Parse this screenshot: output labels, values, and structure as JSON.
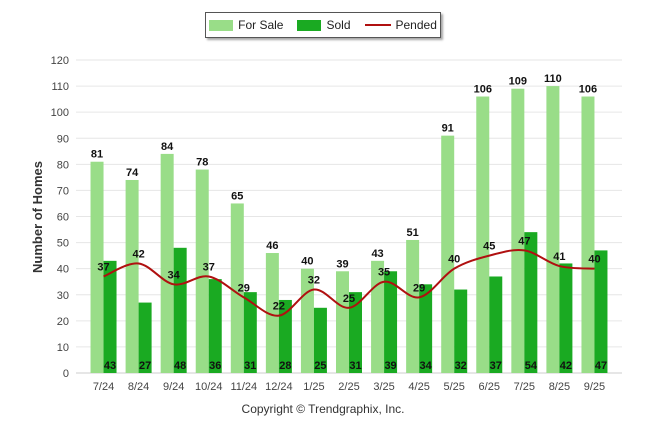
{
  "chart_data": {
    "type": "bar",
    "title": "",
    "xlabel": "",
    "ylabel": "Number of Homes",
    "ylim": [
      0,
      120
    ],
    "yticks": [
      0,
      10,
      20,
      30,
      40,
      50,
      60,
      70,
      80,
      90,
      100,
      110,
      120
    ],
    "grid": true,
    "legend_position": "top-center",
    "categories": [
      "7/24",
      "8/24",
      "9/24",
      "10/24",
      "11/24",
      "12/24",
      "1/25",
      "2/25",
      "3/25",
      "4/25",
      "5/25",
      "6/25",
      "7/25",
      "8/25",
      "9/25"
    ],
    "series": [
      {
        "name": "For Sale",
        "type": "bar",
        "color": "#99dd88",
        "values": [
          81,
          74,
          84,
          78,
          65,
          46,
          40,
          39,
          43,
          51,
          91,
          106,
          109,
          110,
          106
        ]
      },
      {
        "name": "Sold",
        "type": "bar",
        "color": "#1aaa22",
        "values": [
          43,
          27,
          48,
          36,
          31,
          28,
          25,
          31,
          39,
          34,
          32,
          37,
          54,
          42,
          47
        ]
      },
      {
        "name": "Pended",
        "type": "line",
        "color": "#b01010",
        "values": [
          37,
          42,
          34,
          37,
          29,
          22,
          32,
          25,
          35,
          29,
          40,
          45,
          47,
          41,
          40
        ]
      }
    ]
  },
  "legend": {
    "for_sale": "For Sale",
    "sold": "Sold",
    "pended": "Pended"
  },
  "copyright": "Copyright © Trendgraphix, Inc."
}
